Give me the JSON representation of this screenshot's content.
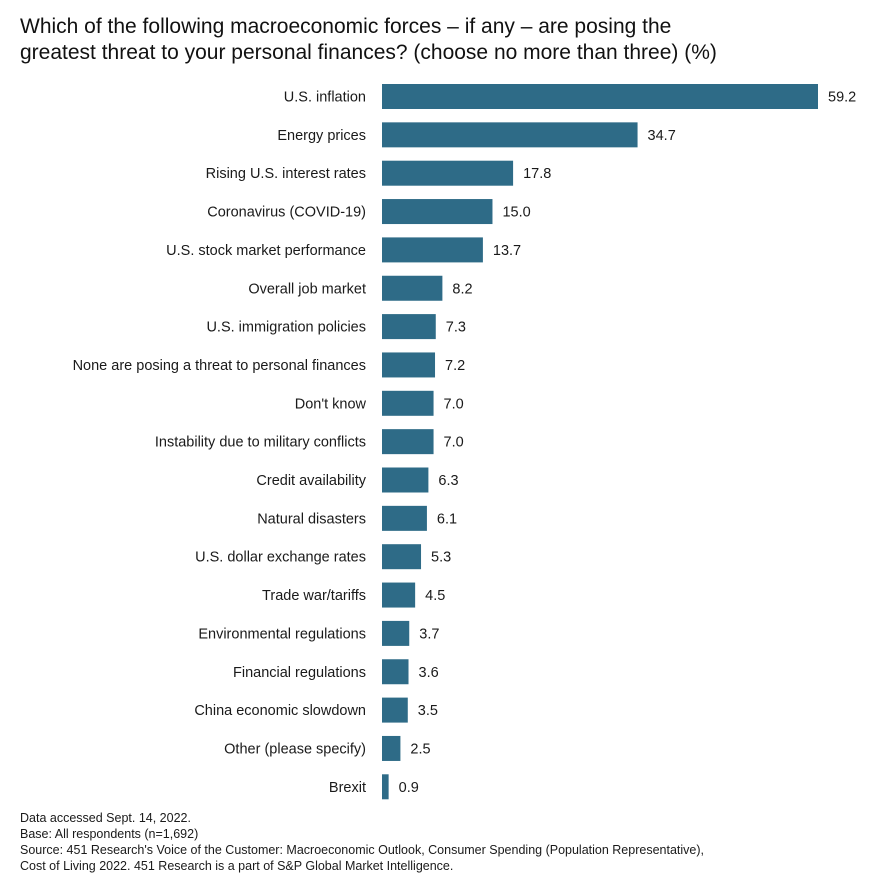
{
  "title_lines": [
    "Which of the following macroeconomic forces – if any – are posing the",
    "greatest threat to your personal finances? (choose no more than three) (%)"
  ],
  "notes": {
    "accessed": "Data accessed Sept. 14, 2022.",
    "base": "Base: All respondents (n=1,692)",
    "source_line1": "Source: 451 Research's Voice of the Customer: Macroeconomic Outlook, Consumer Spending (Population Representative),",
    "source_line2": "Cost of Living 2022. 451 Research is a part of S&P Global Market Intelligence."
  },
  "colors": {
    "bar": "#2e6b87",
    "text": "#1a1a1a"
  },
  "chart_data": {
    "type": "bar",
    "orientation": "horizontal",
    "title": "Which of the following macroeconomic forces – if any – are posing the greatest threat to your personal finances? (choose no more than three) (%)",
    "xlim": [
      0,
      59.2
    ],
    "grid": false,
    "categories": [
      "U.S. inflation",
      "Energy prices",
      "Rising U.S. interest rates",
      "Coronavirus (COVID-19)",
      "U.S. stock market performance",
      "Overall job market",
      "U.S. immigration policies",
      "None are posing a threat to personal finances",
      "Don't know",
      "Instability due to military conflicts",
      "Credit availability",
      "Natural disasters",
      "U.S. dollar exchange rates",
      "Trade war/tariffs",
      "Environmental regulations",
      "Financial regulations",
      "China economic slowdown",
      "Other (please specify)",
      "Brexit"
    ],
    "values": [
      59.2,
      34.7,
      17.8,
      15.0,
      13.7,
      8.2,
      7.3,
      7.2,
      7.0,
      7.0,
      6.3,
      6.1,
      5.3,
      4.5,
      3.7,
      3.6,
      3.5,
      2.5,
      0.9
    ],
    "value_labels": [
      "59.2",
      "34.7",
      "17.8",
      "15.0",
      "13.7",
      "8.2",
      "7.3",
      "7.2",
      "7.0",
      "7.0",
      "6.3",
      "6.1",
      "5.3",
      "4.5",
      "3.7",
      "3.6",
      "3.5",
      "2.5",
      "0.9"
    ]
  }
}
